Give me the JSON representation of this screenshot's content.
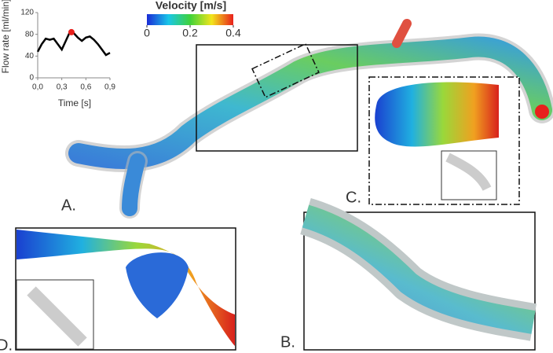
{
  "chart_data": {
    "type": "line",
    "x": [
      0,
      0.05,
      0.1,
      0.15,
      0.2,
      0.25,
      0.3,
      0.35,
      0.4,
      0.45,
      0.5,
      0.55,
      0.6,
      0.65,
      0.7,
      0.75,
      0.8,
      0.85,
      0.9
    ],
    "values": [
      48,
      62,
      72,
      70,
      72,
      62,
      52,
      68,
      84,
      82,
      74,
      68,
      74,
      76,
      70,
      62,
      52,
      42,
      46
    ],
    "color": "#000000",
    "marker": {
      "x": 0.42,
      "y": 84,
      "color": "#e8201c"
    },
    "xlabel": "Time [s]",
    "ylabel": "Flow rate [ml/min]",
    "xlim": [
      0,
      0.9
    ],
    "xticks": [
      {
        "value": 0,
        "label": "0,0"
      },
      {
        "value": 0.3,
        "label": "0,3"
      },
      {
        "value": 0.6,
        "label": "0,6"
      },
      {
        "value": 0.9,
        "label": "0,9"
      }
    ],
    "ylim": [
      0,
      120
    ],
    "yticks": [
      0,
      40,
      80,
      120
    ]
  },
  "colorbar": {
    "title": "Velocity [m/s]",
    "lim": [
      0,
      0.4
    ],
    "ticks": [
      0,
      0.2,
      0.4
    ]
  },
  "panels": {
    "labels": [
      "A.",
      "B.",
      "C.",
      "D."
    ]
  }
}
